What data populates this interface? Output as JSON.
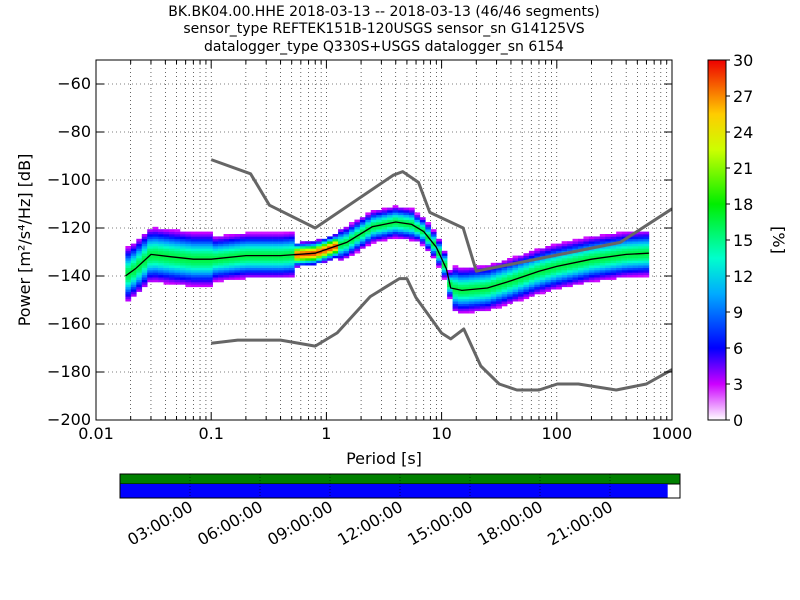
{
  "header": {
    "line1": "BK.BK04.00.HHE   2018-03-13 -- 2018-03-13  (46/46 segments)",
    "line2": "sensor_type REFTEK151B-120USGS sensor_sn G14125VS",
    "line3": "datalogger_type Q330S+USGS datalogger_sn 6154"
  },
  "chart_data": {
    "type": "heatmap",
    "xlabel": "Period [s]",
    "ylabel": "Power [m²/s⁴/Hz] [dB]",
    "x_scale": "log",
    "xlim": [
      0.01,
      1000
    ],
    "ylim": [
      -200,
      -50
    ],
    "x_ticks": [
      {
        "v": 0.01,
        "label": "0.01"
      },
      {
        "v": 0.1,
        "label": "0.1"
      },
      {
        "v": 1,
        "label": "1"
      },
      {
        "v": 10,
        "label": "10"
      },
      {
        "v": 100,
        "label": "100"
      },
      {
        "v": 1000,
        "label": "1000"
      }
    ],
    "y_ticks": [
      {
        "v": -60,
        "label": "−60"
      },
      {
        "v": -80,
        "label": "−80"
      },
      {
        "v": -100,
        "label": "−100"
      },
      {
        "v": -120,
        "label": "−120"
      },
      {
        "v": -140,
        "label": "−140"
      },
      {
        "v": -160,
        "label": "−160"
      },
      {
        "v": -180,
        "label": "−180"
      },
      {
        "v": -200,
        "label": "−200"
      }
    ],
    "grid": true,
    "colorbar": {
      "label": "[%]",
      "range": [
        0,
        30
      ],
      "ticks": [
        {
          "v": 30,
          "label": "30"
        },
        {
          "v": 27,
          "label": "27"
        },
        {
          "v": 24,
          "label": "24"
        },
        {
          "v": 21,
          "label": "21"
        },
        {
          "v": 18,
          "label": "18"
        },
        {
          "v": 15,
          "label": "15"
        },
        {
          "v": 12,
          "label": "12"
        },
        {
          "v": 9,
          "label": "9"
        },
        {
          "v": 6,
          "label": "6"
        },
        {
          "v": 3,
          "label": "3"
        },
        {
          "v": 0,
          "label": "0"
        }
      ]
    },
    "noise_model_high": {
      "period": [
        0.1,
        0.22,
        0.32,
        0.8,
        3.8,
        4.6,
        6.3,
        7.9,
        15.4,
        20,
        354.8,
        1000
      ],
      "db": [
        -91.5,
        -97.4,
        -110.5,
        -120.0,
        -98.0,
        -96.5,
        -101.0,
        -113.5,
        -120.0,
        -138.0,
        -126.0,
        -112.0
      ]
    },
    "noise_model_low": {
      "period": [
        0.1,
        0.17,
        0.4,
        0.8,
        1.24,
        2.4,
        4.3,
        5.0,
        6.0,
        10.0,
        12.0,
        15.6,
        21.9,
        31.6,
        45.0,
        70.0,
        101.0,
        154.0,
        328.0,
        600.0,
        1000.0
      ],
      "db": [
        -168.0,
        -166.7,
        -166.7,
        -169.2,
        -163.7,
        -148.6,
        -141.1,
        -141.1,
        -149.0,
        -163.8,
        -166.2,
        -162.1,
        -177.5,
        -185.0,
        -187.5,
        -187.5,
        -185.0,
        -185.0,
        -187.5,
        -185.0,
        -179.0
      ]
    },
    "median_curve": {
      "period": [
        0.018,
        0.022,
        0.03,
        0.045,
        0.07,
        0.1,
        0.2,
        0.4,
        0.8,
        1.5,
        2.5,
        4.0,
        5.5,
        7.0,
        9.0,
        11.0,
        12.0,
        15.0,
        25.0,
        40.0,
        70.0,
        100.0,
        200.0,
        400.0,
        630.0
      ],
      "db": [
        -140.0,
        -137.0,
        -131.0,
        -132.0,
        -133.0,
        -133.0,
        -131.5,
        -131.5,
        -130.5,
        -126.0,
        -119.5,
        -117.5,
        -118.5,
        -121.5,
        -128.0,
        -137.0,
        -145.0,
        -146.0,
        -145.0,
        -142.0,
        -138.0,
        -136.0,
        -133.0,
        -131.0,
        -130.5
      ]
    },
    "coverage": {
      "time_ticks": [
        "03:00:00",
        "06:00:00",
        "09:00:00",
        "12:00:00",
        "15:00:00",
        "18:00:00",
        "21:00:00"
      ],
      "data_fraction": 0.978,
      "colors": {
        "data": "#008000",
        "psd": "#0000ff"
      }
    }
  }
}
